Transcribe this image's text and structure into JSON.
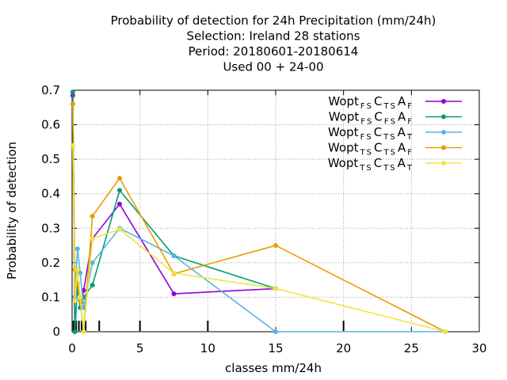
{
  "chart_data": {
    "type": "line",
    "title_lines": [
      "Probability of detection  for 24h Precipitation (mm/24h)",
      "Selection: Ireland      28 stations",
      "Period: 20180601-20180614",
      "Used  00 + 24-00"
    ],
    "xlabel": "classes mm/24h",
    "ylabel": "Probability of detection",
    "xlim": [
      0,
      30
    ],
    "ylim": [
      0,
      0.7
    ],
    "xticks": [
      "0",
      "5",
      "10",
      "15",
      "20",
      "25",
      "30"
    ],
    "yticks": [
      "0",
      "0.1",
      "0.2",
      "0.3",
      "0.4",
      "0.5",
      "0.6",
      "0.7"
    ],
    "grid": true,
    "legend_position": "top-right",
    "class_marks": [
      0.1,
      0.3,
      0.5,
      0.7,
      1,
      2,
      5,
      10,
      20
    ],
    "series": [
      {
        "name": "Wopt FS C TS A F",
        "legend": {
          "parts": [
            [
              "Wopt",
              "FS"
            ],
            [
              "C",
              "TS"
            ],
            [
              "A",
              "F"
            ]
          ]
        },
        "color": "#9400d3",
        "x": [
          0.05,
          0.2,
          0.4,
          0.6,
          0.85,
          1.5,
          3.5,
          7.5,
          15
        ],
        "y": [
          0.685,
          0.0,
          0.14,
          0.07,
          0.12,
          0.27,
          0.37,
          0.11,
          0.125
        ]
      },
      {
        "name": "Wopt FS C FS A F",
        "legend": {
          "parts": [
            [
              "Wopt",
              "FS"
            ],
            [
              "C",
              "FS"
            ],
            [
              "A",
              "F"
            ]
          ]
        },
        "color": "#009e73",
        "x": [
          0.05,
          0.2,
          0.4,
          0.6,
          0.85,
          1.5,
          3.5,
          7.5,
          15
        ],
        "y": [
          0.695,
          0.0,
          0.13,
          0.07,
          0.1,
          0.135,
          0.41,
          0.22,
          0.125
        ]
      },
      {
        "name": "Wopt FS C TS A T",
        "legend": {
          "parts": [
            [
              "Wopt",
              "FS"
            ],
            [
              "C",
              "TS"
            ],
            [
              "A",
              "T"
            ]
          ]
        },
        "color": "#56b4e9",
        "x": [
          0.05,
          0.2,
          0.4,
          0.6,
          0.85,
          1.5,
          3.5,
          7.5,
          15,
          27.5
        ],
        "y": [
          0.66,
          0.1,
          0.24,
          0.17,
          0.07,
          0.2,
          0.3,
          0.22,
          0.0,
          0.0
        ]
      },
      {
        "name": "Wopt TS C TS A F",
        "legend": {
          "parts": [
            [
              "Wopt",
              "TS"
            ],
            [
              "C",
              "TS"
            ],
            [
              "A",
              "F"
            ]
          ]
        },
        "color": "#e69f00",
        "x": [
          0.05,
          0.2,
          0.4,
          0.6,
          0.85,
          1.5,
          3.5,
          7.5,
          15,
          27.5
        ],
        "y": [
          0.66,
          0.18,
          0.14,
          0.09,
          0.0,
          0.335,
          0.445,
          0.168,
          0.25,
          0.0
        ]
      },
      {
        "name": "Wopt TS C TS A T",
        "legend": {
          "parts": [
            [
              "Wopt",
              "TS"
            ],
            [
              "C",
              "TS"
            ],
            [
              "A",
              "T"
            ]
          ]
        },
        "color": "#f0e442",
        "x": [
          0.05,
          0.2,
          0.4,
          0.6,
          0.85,
          1.5,
          3.5,
          7.5,
          15,
          27.5
        ],
        "y": [
          0.54,
          0.09,
          0.18,
          0.1,
          0.0,
          0.27,
          0.297,
          0.17,
          0.125,
          0.0
        ]
      }
    ]
  }
}
